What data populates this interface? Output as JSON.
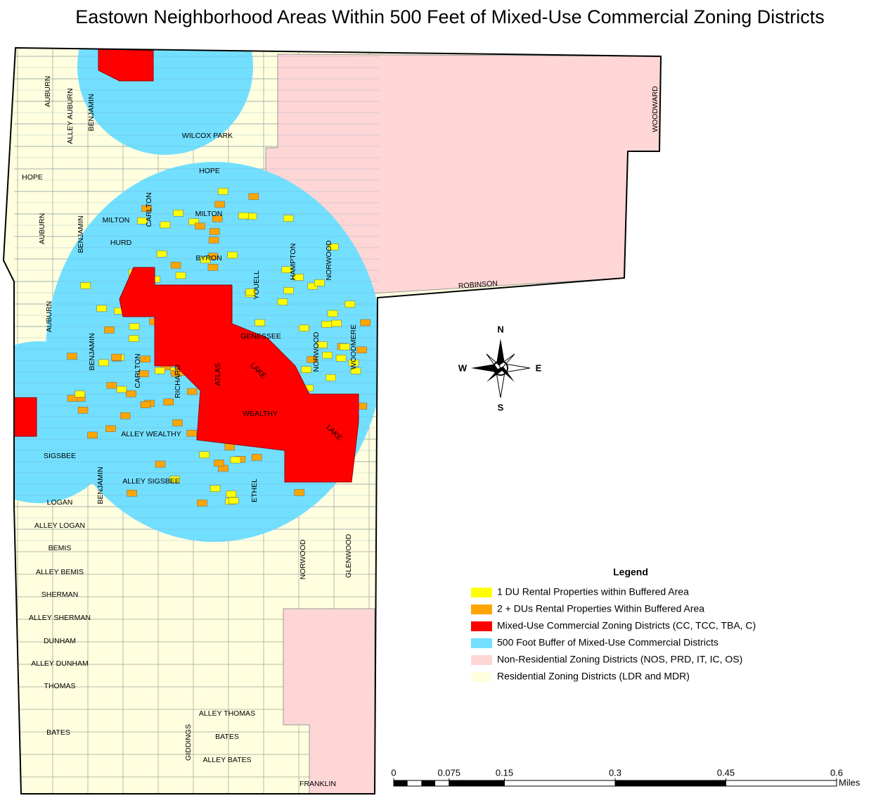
{
  "title": "Eastown Neighborhood Areas Within 500 Feet of Mixed-Use Commercial Zoning Districts",
  "streets": [
    "AUBURN",
    "ALLEY AUBURN",
    "BENJAMIN",
    "WILCOX PARK",
    "HOPE",
    "HOPE",
    "CARLTON",
    "MILTON",
    "MILTON",
    "AUBURN",
    "BENJAMIN",
    "HURD",
    "BYRON",
    "HAMPTON",
    "NORWOOD",
    "YOUELL",
    "ROBINSON",
    "WOODWARD",
    "AUBURN",
    "GENESSEE",
    "NORWOOD",
    "WOODMERE",
    "BENJAMIN",
    "CARLTON",
    "RICHARD",
    "ATLAS",
    "LAKE",
    "WEALTHY",
    "LAKE",
    "ALLEY WEALTHY",
    "SIGSBEE",
    "BENJAMIN",
    "ALLEY SIGSBEE",
    "ETHEL",
    "LOGAN",
    "ALLEY LOGAN",
    "BEMIS",
    "NORWOOD",
    "GLENWOOD",
    "ALLEY BEMIS",
    "SHERMAN",
    "ALLEY SHERMAN",
    "DUNHAM",
    "ALLEY DUNHAM",
    "THOMAS",
    "ALLEY THOMAS",
    "BATES",
    "BATES",
    "GIDDINGS",
    "ALLEY BATES",
    "FRANKLIN"
  ],
  "compass": {
    "n": "N",
    "e": "E",
    "s": "S",
    "w": "W"
  },
  "legend": {
    "title": "Legend",
    "entries": [
      {
        "label": "1 DU Rental Properties within Buffered Area",
        "color": "#ffff00"
      },
      {
        "label": "2 + DUs Rental Properties Within Buffered Area",
        "color": "#ffa500"
      },
      {
        "label": "Mixed-Use Commercial Zoning Districts (CC, TCC, TBA, C)",
        "color": "#ff0000"
      },
      {
        "label": "500 Foot Buffer of Mixed-Use Commercial Districts",
        "color": "#73dfff"
      },
      {
        "label": "Non-Residential Zoning Districts (NOS, PRD, IT, IC, OS)",
        "color": "#ffd6d6"
      },
      {
        "label": "Residential Zoning Districts (LDR and MDR)",
        "color": "#ffffe0"
      }
    ]
  },
  "scale": {
    "ticks": [
      0,
      0.075,
      0.15,
      0.3,
      0.45,
      0.6
    ],
    "unit": "Miles"
  }
}
